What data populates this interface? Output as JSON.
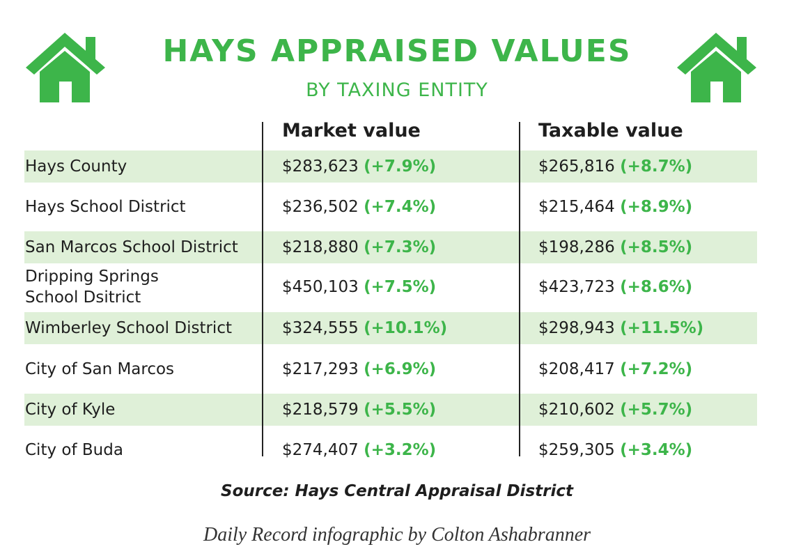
{
  "header": {
    "title": "HAYS APPRAISED VALUES",
    "subtitle": "BY TAXING ENTITY"
  },
  "table": {
    "columns": [
      "Market value",
      "Taxable value"
    ],
    "rows": [
      {
        "entity": [
          "Hays County"
        ],
        "market": "$283,623",
        "market_change": "(+7.9%)",
        "taxable": "$265,816",
        "taxable_change": "(+8.7%)"
      },
      {
        "entity": [
          "Hays School District"
        ],
        "market": "$236,502",
        "market_change": "(+7.4%)",
        "taxable": "$215,464",
        "taxable_change": "(+8.9%)"
      },
      {
        "entity": [
          "San Marcos School District"
        ],
        "market": "$218,880",
        "market_change": "(+7.3%)",
        "taxable": "$198,286",
        "taxable_change": "(+8.5%)"
      },
      {
        "entity": [
          "Dripping Springs",
          "School Dsitrict"
        ],
        "market": "$450,103",
        "market_change": "(+7.5%)",
        "taxable": "$423,723",
        "taxable_change": "(+8.6%)"
      },
      {
        "entity": [
          "Wimberley School District"
        ],
        "market": "$324,555",
        "market_change": "(+10.1%)",
        "taxable": "$298,943",
        "taxable_change": "(+11.5%)"
      },
      {
        "entity": [
          "City of San Marcos"
        ],
        "market": "$217,293",
        "market_change": "(+6.9%)",
        "taxable": "$208,417",
        "taxable_change": "(+7.2%)"
      },
      {
        "entity": [
          "City of Kyle"
        ],
        "market": "$218,579",
        "market_change": "(+5.5%)",
        "taxable": "$210,602",
        "taxable_change": "(+5.7%)"
      },
      {
        "entity": [
          "City of Buda"
        ],
        "market": "$274,407",
        "market_change": "(+3.2%)",
        "taxable": "$259,305",
        "taxable_change": "(+3.4%)"
      }
    ]
  },
  "source": "Source: Hays Central Appraisal District",
  "credit": "Daily Record infographic by Colton Ashabranner"
}
